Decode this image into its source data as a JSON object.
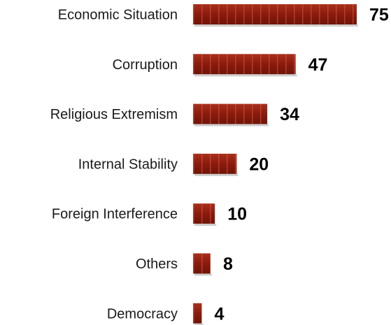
{
  "chart_data": {
    "type": "bar",
    "orientation": "horizontal",
    "title": "",
    "xlabel": "",
    "ylabel": "",
    "categories": [
      "Economic Situation",
      "Corruption",
      "Religious Extremism",
      "Internal Stability",
      "Foreign Interference",
      "Others",
      "Democracy"
    ],
    "values": [
      75,
      47,
      34,
      20,
      10,
      8,
      4
    ],
    "xlim": [
      0,
      75
    ],
    "grid": false,
    "legend": "none",
    "bar_color": "#8B1A0E",
    "bar_highlight_color": "#C0492E"
  }
}
